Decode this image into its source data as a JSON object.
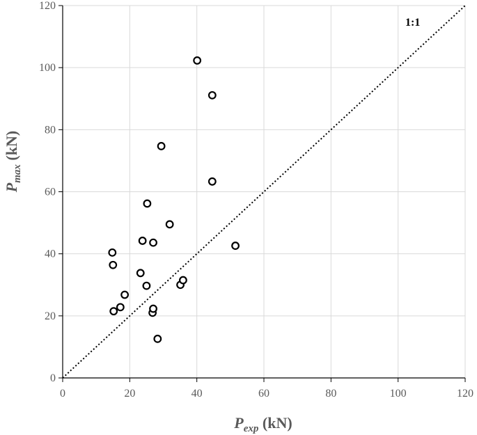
{
  "chart_data": {
    "type": "scatter",
    "xlabel": {
      "main": "P",
      "sub": "exp",
      "unit": " (kN)"
    },
    "ylabel": {
      "main": "P",
      "sub": "max",
      "unit": " (kN)"
    },
    "xlim": [
      0,
      120
    ],
    "ylim": [
      0,
      120
    ],
    "xticks": [
      0,
      20,
      40,
      60,
      80,
      100,
      120
    ],
    "yticks": [
      0,
      20,
      40,
      60,
      80,
      100,
      120
    ],
    "xtick_labels": [
      "0",
      "20",
      "40",
      "60",
      "80",
      "100",
      "120"
    ],
    "ytick_labels": [
      "0",
      "20",
      "40",
      "60",
      "80",
      "100",
      "120"
    ],
    "grid": true,
    "reference_line": {
      "label": "1:1",
      "from": [
        0,
        0
      ],
      "to": [
        120,
        120
      ],
      "style": "dotted"
    },
    "marker": {
      "shape": "open-circle",
      "color": "#000000"
    },
    "points": [
      {
        "x": 14.8,
        "y": 40.4
      },
      {
        "x": 15.0,
        "y": 36.4
      },
      {
        "x": 15.2,
        "y": 21.5
      },
      {
        "x": 17.2,
        "y": 22.8
      },
      {
        "x": 18.5,
        "y": 26.8
      },
      {
        "x": 23.2,
        "y": 33.8
      },
      {
        "x": 23.8,
        "y": 44.2
      },
      {
        "x": 25.0,
        "y": 29.7
      },
      {
        "x": 25.2,
        "y": 56.2
      },
      {
        "x": 26.8,
        "y": 21.0
      },
      {
        "x": 27.0,
        "y": 22.3
      },
      {
        "x": 27.0,
        "y": 43.6
      },
      {
        "x": 28.3,
        "y": 12.6
      },
      {
        "x": 29.4,
        "y": 74.7
      },
      {
        "x": 31.9,
        "y": 49.5
      },
      {
        "x": 35.1,
        "y": 30.0
      },
      {
        "x": 35.9,
        "y": 31.5
      },
      {
        "x": 40.1,
        "y": 102.3
      },
      {
        "x": 44.6,
        "y": 91.1
      },
      {
        "x": 44.6,
        "y": 63.3
      },
      {
        "x": 51.5,
        "y": 42.6
      }
    ]
  }
}
